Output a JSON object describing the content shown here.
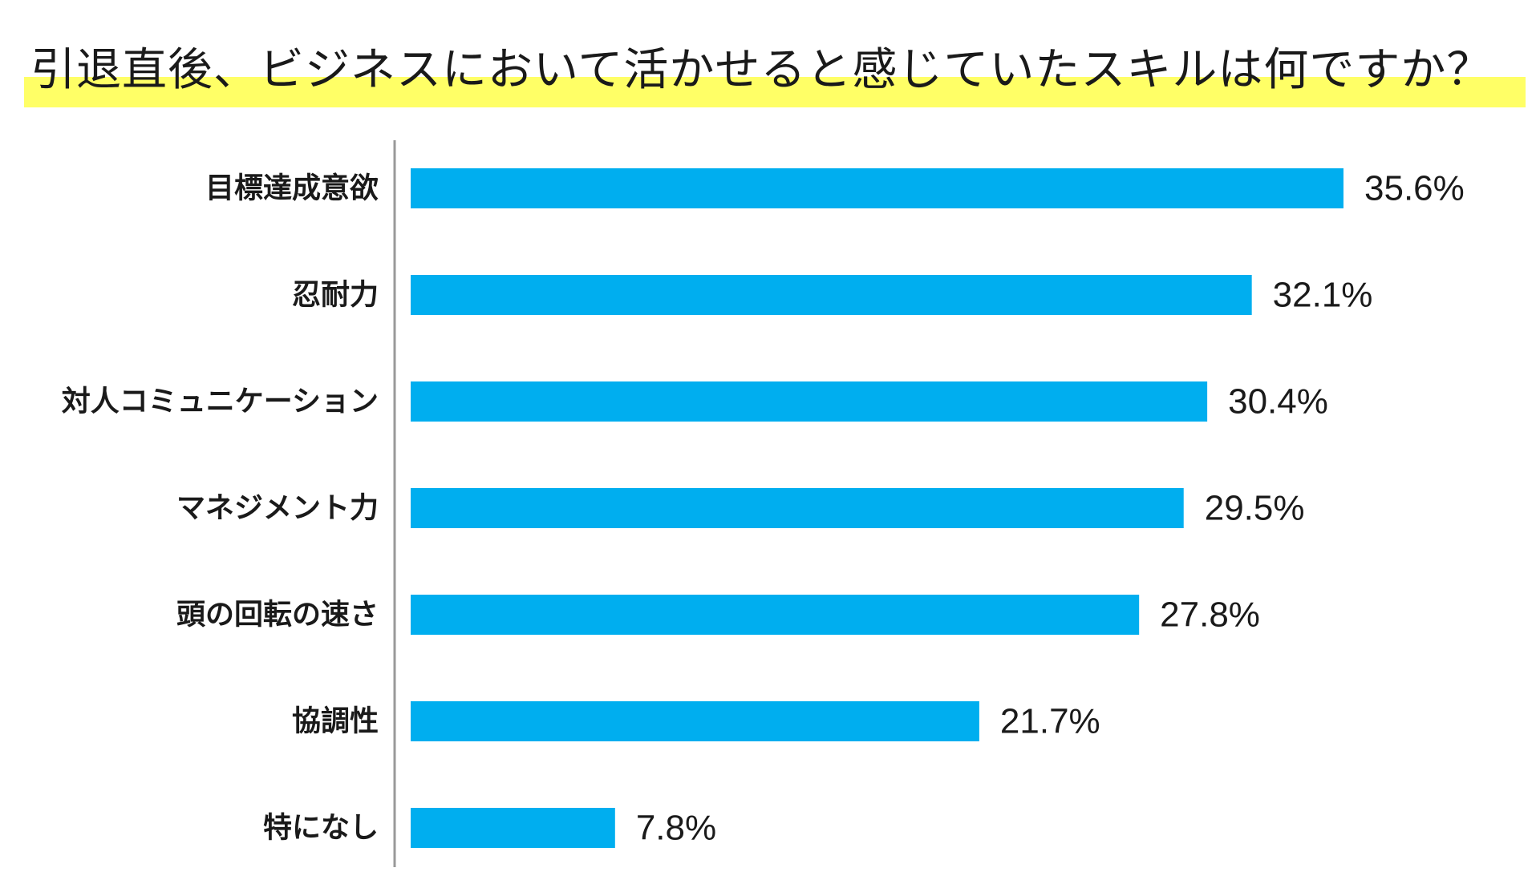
{
  "chart_data": {
    "type": "bar",
    "orientation": "horizontal",
    "title": "引退直後、ビジネスにおいて活かせると感じていたスキルは何ですか？",
    "categories": [
      "目標達成意欲",
      "忍耐力",
      "対人コミュニケーション",
      "マネジメント力",
      "頭の回転の速さ",
      "協調性",
      "特になし"
    ],
    "values": [
      35.6,
      32.1,
      30.4,
      29.5,
      27.8,
      21.7,
      7.8
    ],
    "value_labels": [
      "35.6%",
      "32.1%",
      "30.4%",
      "29.5%",
      "27.8%",
      "21.7%",
      "7.8%"
    ],
    "unit": "%",
    "xlim": [
      0,
      38
    ],
    "grid": false,
    "legend": "none",
    "colors": {
      "bar": "#00AEEF",
      "title_highlight": "#FFFF66",
      "axis": "#999999",
      "text": "#1a1a1a"
    }
  }
}
